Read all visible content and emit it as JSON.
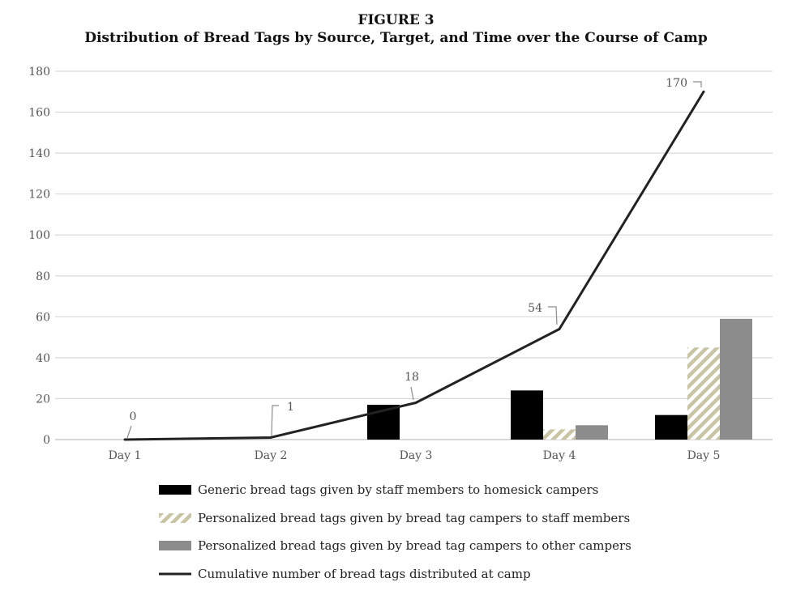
{
  "figure": {
    "label": "FIGURE 3",
    "title": "Distribution of Bread Tags by Source, Target, and Time over the Course of Camp"
  },
  "colors": {
    "generic": "#000000",
    "personalized_staff": "#c9c4a3",
    "personalized_campers": "#8c8c8c",
    "cumulative": "#222222",
    "grid": "#d9d9d9"
  },
  "chart_data": {
    "type": "bar",
    "title": "Distribution of Bread Tags by Source, Target, and Time over the Course of Camp",
    "categories": [
      "Day 1",
      "Day 2",
      "Day 3",
      "Day 4",
      "Day 5"
    ],
    "ylim": [
      0,
      180
    ],
    "yticks": [
      0,
      20,
      40,
      60,
      80,
      100,
      120,
      140,
      160,
      180
    ],
    "grid": true,
    "legend_position": "bottom",
    "series": [
      {
        "name": "Generic bread tags given by staff members to homesick campers",
        "type": "bar",
        "pattern": "solid-black",
        "values": [
          0,
          0,
          17,
          24,
          12
        ]
      },
      {
        "name": "Personalized bread tags given by bread tag campers to staff members",
        "type": "bar",
        "pattern": "diagonal-hatch",
        "values": [
          0,
          0,
          0,
          5,
          45
        ]
      },
      {
        "name": "Personalized bread tags given by bread tag campers to other campers",
        "type": "bar",
        "pattern": "solid-gray",
        "values": [
          0,
          0,
          0,
          7,
          59
        ]
      },
      {
        "name": "Cumulative number of bread tags distributed at camp",
        "type": "line",
        "values": [
          0,
          1,
          18,
          54,
          170
        ]
      }
    ],
    "data_labels": [
      "0",
      "1",
      "18",
      "54",
      "170"
    ]
  }
}
